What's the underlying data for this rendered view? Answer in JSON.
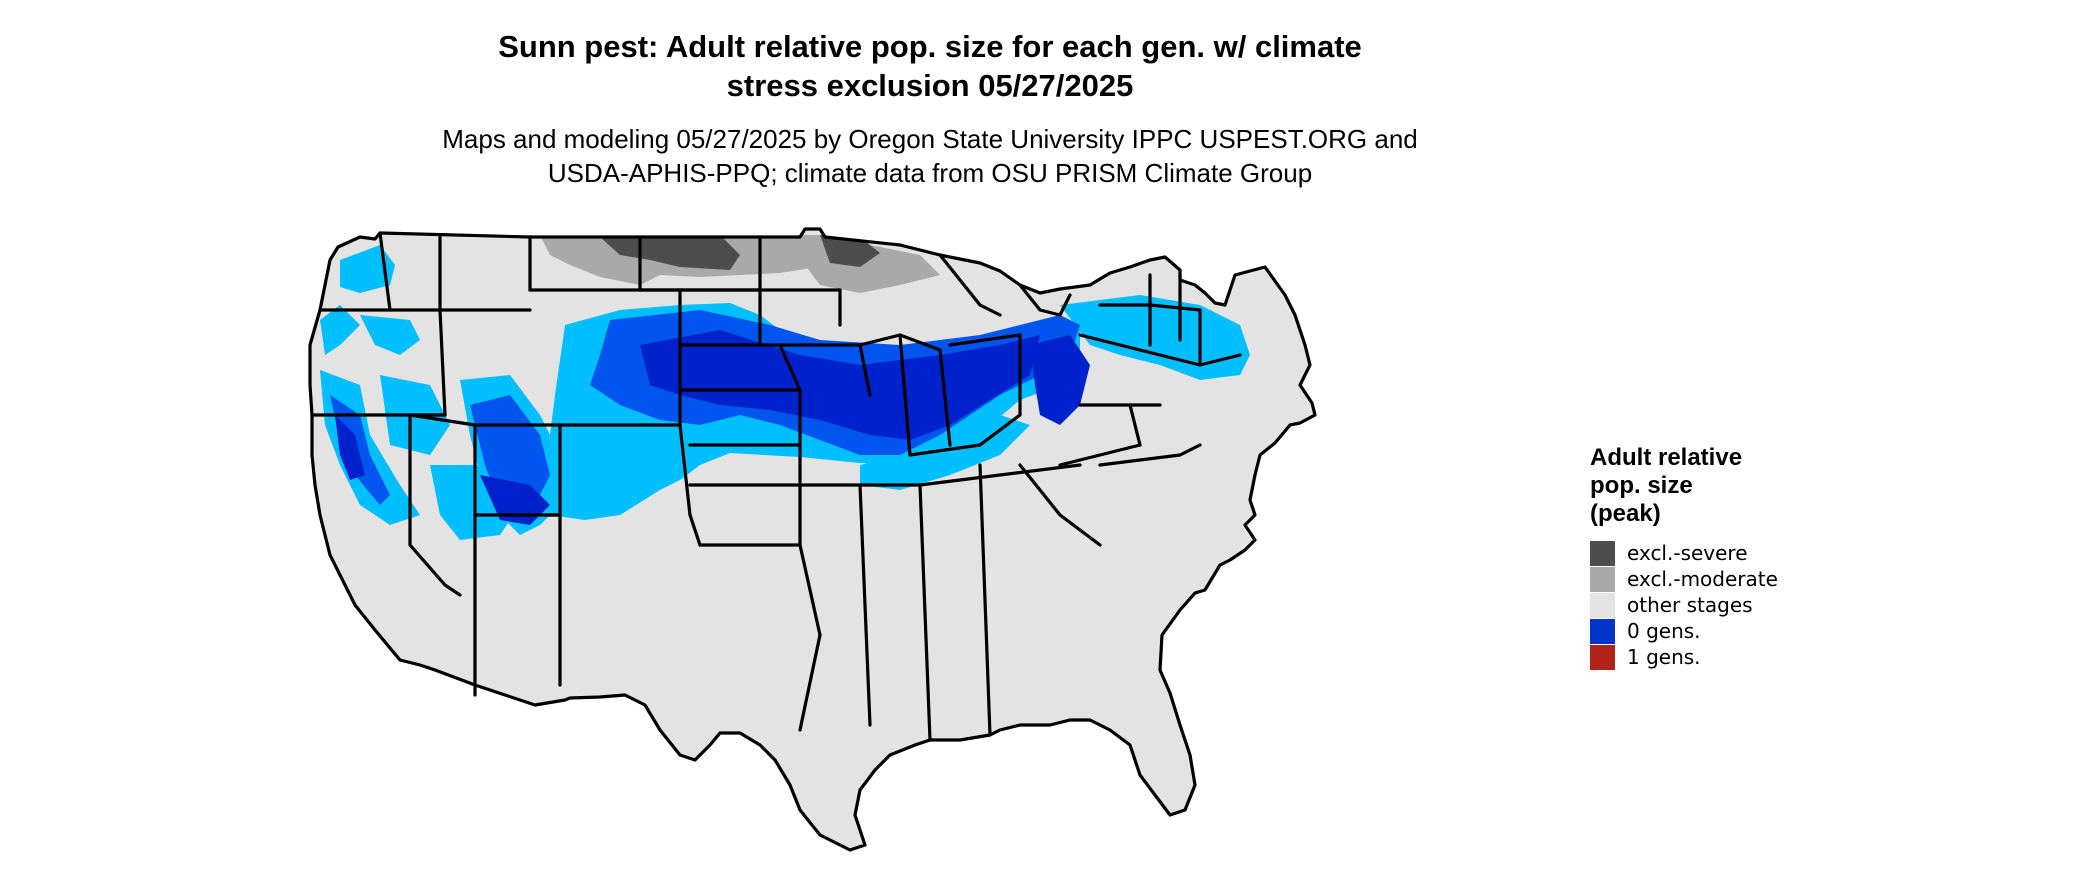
{
  "title": {
    "line1": "Sunn pest: Adult relative pop. size for each gen. w/ climate",
    "line2": "stress exclusion 05/27/2025"
  },
  "subtitle": {
    "line1": "Maps and modeling 05/27/2025 by Oregon State University IPPC USPEST.ORG and",
    "line2": "USDA-APHIS-PPQ; climate data from OSU PRISM Climate Group"
  },
  "legend": {
    "title_lines": [
      "Adult relative",
      "pop. size",
      "(peak)"
    ],
    "items": [
      {
        "label": "excl.-severe",
        "color": "#4d4d4d"
      },
      {
        "label": "excl.-moderate",
        "color": "#a9a9a9"
      },
      {
        "label": "other stages",
        "color": "#e3e3e3"
      },
      {
        "label": "0 gens.",
        "color": "#0033cc"
      },
      {
        "label": "1 gens.",
        "color": "#b22218"
      }
    ]
  },
  "map": {
    "region": "contiguous-united-states",
    "colors": {
      "other_stages": "#e3e3e3",
      "excl_severe": "#4d4d4d",
      "excl_moderate": "#a9a9a9",
      "gens0_light": "#00bfff",
      "gens0_mid": "#0055ee",
      "gens0_dark": "#0022cc",
      "border": "#000000"
    }
  }
}
